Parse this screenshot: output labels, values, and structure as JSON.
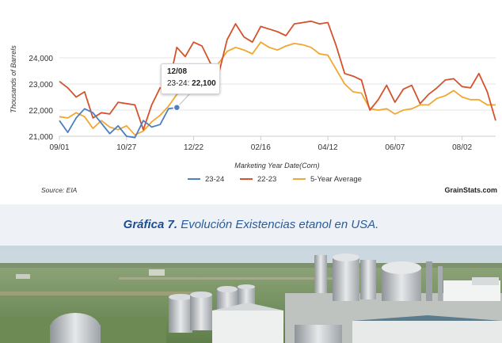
{
  "chart_data": {
    "type": "line",
    "title": "",
    "xlabel": "Marketing Year Date(Corn)",
    "ylabel": "Thousands of Barrels",
    "ylim": [
      21000,
      25000
    ],
    "x_ticks": [
      "09/01",
      "10/27",
      "12/22",
      "02/16",
      "04/12",
      "06/07",
      "08/02"
    ],
    "y_ticks": [
      "21,000",
      "22,000",
      "23,000",
      "24,000"
    ],
    "y_tick_values": [
      21000,
      22000,
      23000,
      24000
    ],
    "x_range_days": [
      0,
      364
    ],
    "x_tick_days": [
      0,
      56,
      112,
      168,
      224,
      280,
      336
    ],
    "grid": "horizontal",
    "legend": "bottom-center",
    "series": [
      {
        "name": "23-24",
        "color": "#4f7fc1",
        "days": [
          0,
          7,
          14,
          21,
          28,
          35,
          42,
          49,
          56,
          63,
          70,
          77,
          84,
          91,
          98
        ],
        "values": [
          21600,
          21150,
          21700,
          22050,
          21900,
          21500,
          21100,
          21400,
          21000,
          20950,
          21600,
          21350,
          21450,
          22050,
          22100
        ]
      },
      {
        "name": "22-23",
        "color": "#d4532c",
        "days": [
          0,
          7,
          14,
          21,
          28,
          35,
          42,
          49,
          56,
          63,
          70,
          77,
          84,
          91,
          98,
          105,
          112,
          119,
          126,
          133,
          140,
          147,
          154,
          161,
          168,
          175,
          182,
          189,
          196,
          203,
          210,
          217,
          224,
          231,
          238,
          245,
          252,
          259,
          266,
          273,
          280,
          287,
          294,
          301,
          308,
          315,
          322,
          329,
          336,
          343,
          350,
          357,
          364
        ],
        "values": [
          23100,
          22850,
          22500,
          22700,
          21700,
          21900,
          21850,
          22300,
          22250,
          22200,
          21250,
          22200,
          22850,
          22900,
          24400,
          24050,
          24600,
          24450,
          23800,
          23400,
          24700,
          25300,
          24800,
          24600,
          25200,
          25100,
          25000,
          24850,
          25300,
          25350,
          25400,
          25300,
          25350,
          24450,
          23400,
          23300,
          23150,
          22000,
          22400,
          22950,
          22300,
          22800,
          22950,
          22250,
          22600,
          22850,
          23150,
          23200,
          22900,
          22850,
          23400,
          22700,
          21600
        ]
      },
      {
        "name": "5-Year Average",
        "color": "#f0a830",
        "days": [
          0,
          7,
          14,
          21,
          28,
          35,
          42,
          49,
          56,
          63,
          70,
          77,
          84,
          91,
          98,
          105,
          112,
          119,
          126,
          133,
          140,
          147,
          154,
          161,
          168,
          175,
          182,
          189,
          196,
          203,
          210,
          217,
          224,
          231,
          238,
          245,
          252,
          259,
          266,
          273,
          280,
          287,
          294,
          301,
          308,
          315,
          322,
          329,
          336,
          343,
          350,
          357,
          364
        ],
        "values": [
          21750,
          21700,
          21900,
          21750,
          21300,
          21600,
          21350,
          21250,
          21400,
          21050,
          21200,
          21550,
          21800,
          22150,
          22600,
          22800,
          23100,
          23300,
          23550,
          23800,
          24250,
          24400,
          24300,
          24150,
          24600,
          24400,
          24300,
          24450,
          24550,
          24500,
          24400,
          24150,
          24100,
          23550,
          23000,
          22700,
          22650,
          22050,
          22000,
          22050,
          21850,
          22000,
          22050,
          22200,
          22200,
          22450,
          22550,
          22750,
          22500,
          22400,
          22400,
          22200,
          22200
        ]
      }
    ],
    "tooltip": {
      "date": "12/08",
      "series_label": "23-24:",
      "value_label": "22,100",
      "day": 98,
      "value": 22100
    }
  },
  "source": "Source: EIA",
  "site": "GrainStats.com",
  "caption_prefix": "Gráfica 7.",
  "caption_text": " Evolución Existencias etanol en USA."
}
